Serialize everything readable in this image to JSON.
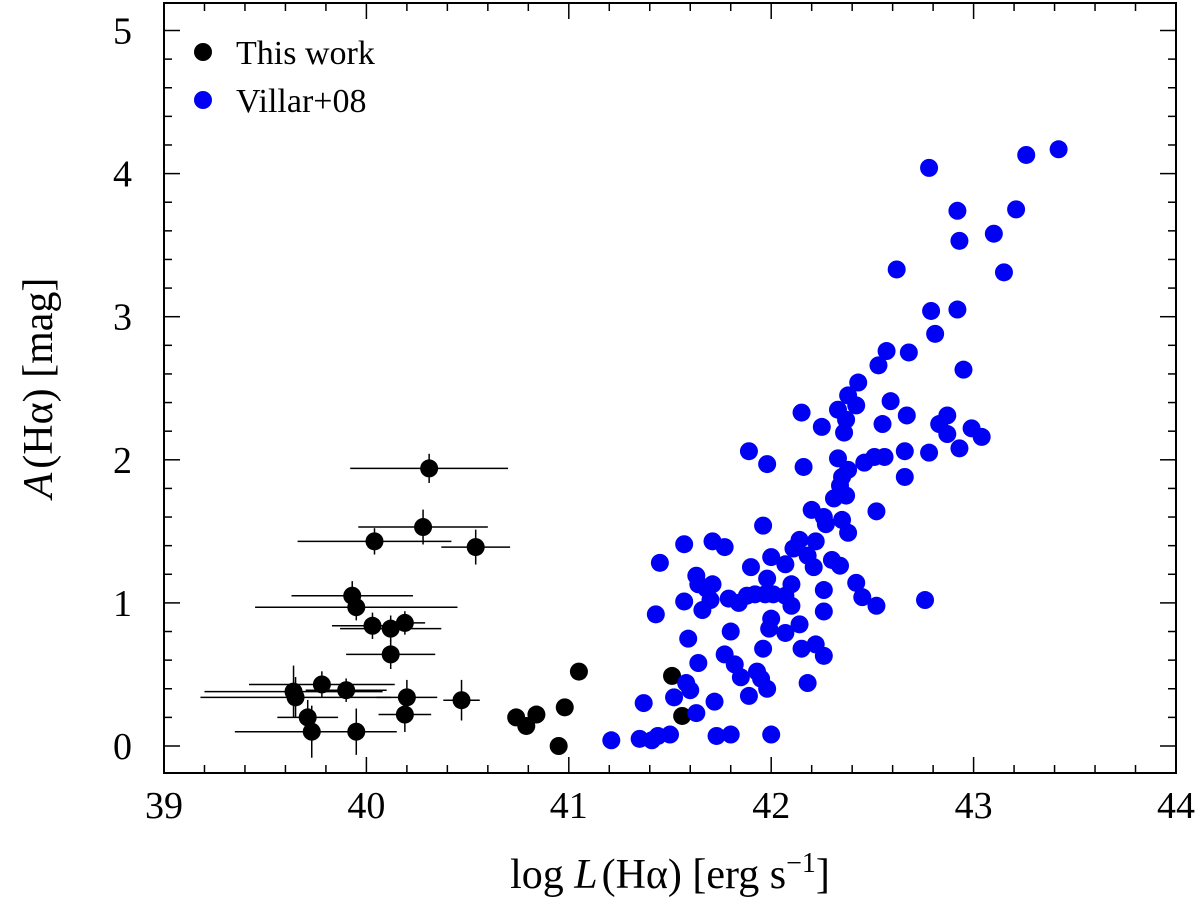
{
  "chart_data": {
    "type": "scatter",
    "title": "",
    "xlabel_prefix": "log ",
    "xlabel_var": "L",
    "xlabel_paren": "(Hα)",
    "xlabel_unit": " [erg s",
    "xlabel_exp": "−1",
    "xlabel_close": "]",
    "ylabel_var": "A",
    "ylabel_rest": "(Hα) [mag]",
    "xlim": [
      39,
      44
    ],
    "ylim": [
      -0.2,
      5.2
    ],
    "xticks": [
      39,
      40,
      41,
      42,
      43,
      44
    ],
    "yticks": [
      0,
      1,
      2,
      3,
      4,
      5
    ],
    "xtick_labels": [
      "39",
      "40",
      "41",
      "42",
      "43",
      "44"
    ],
    "ytick_labels": [
      "0",
      "1",
      "2",
      "3",
      "4",
      "5"
    ],
    "grid": false,
    "legend_position": "top-left",
    "series": [
      {
        "name": "This work",
        "color": "#000000",
        "points": [
          {
            "x": 40.31,
            "y": 1.94,
            "xerr": 0.39,
            "yerr": 0.06
          },
          {
            "x": 40.28,
            "y": 1.53,
            "xerr": 0.32,
            "yerr": 0.08
          },
          {
            "x": 40.04,
            "y": 1.43,
            "xerr": 0.38,
            "yerr": 0.05
          },
          {
            "x": 40.54,
            "y": 1.39,
            "xerr": 0.17,
            "yerr": 0.08
          },
          {
            "x": 39.93,
            "y": 1.05,
            "xerr": 0.3,
            "yerr": 0.06
          },
          {
            "x": 39.95,
            "y": 0.97,
            "xerr": 0.5,
            "yerr": 0.05
          },
          {
            "x": 40.03,
            "y": 0.84,
            "xerr": 0.2,
            "yerr": 0.05
          },
          {
            "x": 40.12,
            "y": 0.82,
            "xerr": 0.25,
            "yerr": 0.05
          },
          {
            "x": 40.19,
            "y": 0.86,
            "xerr": 0.1,
            "yerr": 0.04
          },
          {
            "x": 40.12,
            "y": 0.64,
            "xerr": 0.22,
            "yerr": 0.06
          },
          {
            "x": 39.78,
            "y": 0.43,
            "xerr": 0.36,
            "yerr": 0.05
          },
          {
            "x": 39.9,
            "y": 0.39,
            "xerr": 0.2,
            "yerr": 0.04
          },
          {
            "x": 39.64,
            "y": 0.38,
            "xerr": 0.44,
            "yerr": 0.14
          },
          {
            "x": 39.65,
            "y": 0.34,
            "xerr": 0.47,
            "yerr": 0.1
          },
          {
            "x": 40.2,
            "y": 0.34,
            "xerr": 0.15,
            "yerr": 0.08
          },
          {
            "x": 40.47,
            "y": 0.32,
            "xerr": 0.09,
            "yerr": 0.1
          },
          {
            "x": 40.19,
            "y": 0.22,
            "xerr": 0.13,
            "yerr": 0.08
          },
          {
            "x": 39.71,
            "y": 0.2,
            "xerr": 0.15,
            "yerr": 0.08
          },
          {
            "x": 39.73,
            "y": 0.1,
            "xerr": 0.38,
            "yerr": 0.14
          },
          {
            "x": 39.95,
            "y": 0.1,
            "xerr": 0.2,
            "yerr": 0.12
          },
          {
            "x": 40.74,
            "y": 0.2,
            "xerr": 0.0,
            "yerr": 0.0
          },
          {
            "x": 40.79,
            "y": 0.14,
            "xerr": 0.0,
            "yerr": 0.0
          },
          {
            "x": 40.84,
            "y": 0.22,
            "xerr": 0.0,
            "yerr": 0.0
          },
          {
            "x": 40.95,
            "y": 0.0,
            "xerr": 0.0,
            "yerr": 0.0
          },
          {
            "x": 40.98,
            "y": 0.27,
            "xerr": 0.0,
            "yerr": 0.0
          },
          {
            "x": 41.05,
            "y": 0.52,
            "xerr": 0.0,
            "yerr": 0.0
          },
          {
            "x": 41.51,
            "y": 0.49,
            "xerr": 0.0,
            "yerr": 0.0
          },
          {
            "x": 41.56,
            "y": 0.21,
            "xerr": 0.0,
            "yerr": 0.0
          }
        ]
      },
      {
        "name": "Villar+08",
        "color": "#0000f5",
        "points": [
          {
            "x": 43.42,
            "y": 4.17
          },
          {
            "x": 43.26,
            "y": 4.13
          },
          {
            "x": 42.78,
            "y": 4.04
          },
          {
            "x": 42.92,
            "y": 3.74
          },
          {
            "x": 43.21,
            "y": 3.75
          },
          {
            "x": 43.1,
            "y": 3.58
          },
          {
            "x": 42.93,
            "y": 3.53
          },
          {
            "x": 42.62,
            "y": 3.33
          },
          {
            "x": 43.15,
            "y": 3.31
          },
          {
            "x": 42.79,
            "y": 3.04
          },
          {
            "x": 42.92,
            "y": 3.05
          },
          {
            "x": 42.81,
            "y": 2.88
          },
          {
            "x": 42.57,
            "y": 2.76
          },
          {
            "x": 42.68,
            "y": 2.75
          },
          {
            "x": 42.53,
            "y": 2.66
          },
          {
            "x": 42.95,
            "y": 2.63
          },
          {
            "x": 42.43,
            "y": 2.54
          },
          {
            "x": 42.38,
            "y": 2.45
          },
          {
            "x": 42.59,
            "y": 2.41
          },
          {
            "x": 42.42,
            "y": 2.38
          },
          {
            "x": 42.33,
            "y": 2.35
          },
          {
            "x": 42.15,
            "y": 2.33
          },
          {
            "x": 42.87,
            "y": 2.31
          },
          {
            "x": 42.67,
            "y": 2.31
          },
          {
            "x": 42.37,
            "y": 2.28
          },
          {
            "x": 42.55,
            "y": 2.25
          },
          {
            "x": 42.83,
            "y": 2.25
          },
          {
            "x": 42.25,
            "y": 2.23
          },
          {
            "x": 42.99,
            "y": 2.22
          },
          {
            "x": 42.36,
            "y": 2.19
          },
          {
            "x": 42.87,
            "y": 2.18
          },
          {
            "x": 43.04,
            "y": 2.16
          },
          {
            "x": 41.89,
            "y": 2.06
          },
          {
            "x": 42.66,
            "y": 2.06
          },
          {
            "x": 42.78,
            "y": 2.05
          },
          {
            "x": 42.93,
            "y": 2.08
          },
          {
            "x": 42.51,
            "y": 2.02
          },
          {
            "x": 42.33,
            "y": 2.01
          },
          {
            "x": 42.56,
            "y": 2.02
          },
          {
            "x": 42.46,
            "y": 1.98
          },
          {
            "x": 41.98,
            "y": 1.97
          },
          {
            "x": 42.16,
            "y": 1.95
          },
          {
            "x": 42.38,
            "y": 1.93
          },
          {
            "x": 42.35,
            "y": 1.88
          },
          {
            "x": 42.66,
            "y": 1.88
          },
          {
            "x": 42.34,
            "y": 1.82
          },
          {
            "x": 42.37,
            "y": 1.75
          },
          {
            "x": 42.31,
            "y": 1.73
          },
          {
            "x": 42.2,
            "y": 1.65
          },
          {
            "x": 42.52,
            "y": 1.64
          },
          {
            "x": 42.26,
            "y": 1.6
          },
          {
            "x": 42.35,
            "y": 1.58
          },
          {
            "x": 42.27,
            "y": 1.55
          },
          {
            "x": 41.96,
            "y": 1.54
          },
          {
            "x": 42.38,
            "y": 1.49
          },
          {
            "x": 42.14,
            "y": 1.44
          },
          {
            "x": 42.22,
            "y": 1.43
          },
          {
            "x": 41.71,
            "y": 1.43
          },
          {
            "x": 41.57,
            "y": 1.41
          },
          {
            "x": 41.77,
            "y": 1.39
          },
          {
            "x": 42.11,
            "y": 1.38
          },
          {
            "x": 42.18,
            "y": 1.33
          },
          {
            "x": 42.0,
            "y": 1.32
          },
          {
            "x": 42.3,
            "y": 1.3
          },
          {
            "x": 41.45,
            "y": 1.28
          },
          {
            "x": 42.07,
            "y": 1.27
          },
          {
            "x": 42.34,
            "y": 1.26
          },
          {
            "x": 41.9,
            "y": 1.25
          },
          {
            "x": 42.21,
            "y": 1.25
          },
          {
            "x": 41.63,
            "y": 1.19
          },
          {
            "x": 41.98,
            "y": 1.17
          },
          {
            "x": 41.64,
            "y": 1.13
          },
          {
            "x": 41.71,
            "y": 1.13
          },
          {
            "x": 42.1,
            "y": 1.13
          },
          {
            "x": 42.42,
            "y": 1.14
          },
          {
            "x": 41.68,
            "y": 1.1
          },
          {
            "x": 42.26,
            "y": 1.09
          },
          {
            "x": 41.92,
            "y": 1.06
          },
          {
            "x": 42.01,
            "y": 1.06
          },
          {
            "x": 41.57,
            "y": 1.01
          },
          {
            "x": 41.84,
            "y": 1.0
          },
          {
            "x": 41.88,
            "y": 1.05
          },
          {
            "x": 42.07,
            "y": 1.05
          },
          {
            "x": 41.97,
            "y": 1.06
          },
          {
            "x": 42.45,
            "y": 1.04
          },
          {
            "x": 41.7,
            "y": 1.02
          },
          {
            "x": 41.79,
            "y": 1.03
          },
          {
            "x": 42.76,
            "y": 1.02
          },
          {
            "x": 42.1,
            "y": 0.98
          },
          {
            "x": 42.52,
            "y": 0.98
          },
          {
            "x": 41.66,
            "y": 0.95
          },
          {
            "x": 42.26,
            "y": 0.94
          },
          {
            "x": 41.43,
            "y": 0.92
          },
          {
            "x": 42.0,
            "y": 0.89
          },
          {
            "x": 42.14,
            "y": 0.85
          },
          {
            "x": 41.99,
            "y": 0.82
          },
          {
            "x": 41.8,
            "y": 0.8
          },
          {
            "x": 42.07,
            "y": 0.79
          },
          {
            "x": 41.59,
            "y": 0.75
          },
          {
            "x": 42.22,
            "y": 0.71
          },
          {
            "x": 41.96,
            "y": 0.68
          },
          {
            "x": 42.15,
            "y": 0.68
          },
          {
            "x": 41.77,
            "y": 0.64
          },
          {
            "x": 42.26,
            "y": 0.63
          },
          {
            "x": 41.64,
            "y": 0.58
          },
          {
            "x": 41.82,
            "y": 0.57
          },
          {
            "x": 41.93,
            "y": 0.52
          },
          {
            "x": 41.85,
            "y": 0.48
          },
          {
            "x": 41.95,
            "y": 0.47
          },
          {
            "x": 42.18,
            "y": 0.44
          },
          {
            "x": 41.58,
            "y": 0.44
          },
          {
            "x": 41.98,
            "y": 0.4
          },
          {
            "x": 41.6,
            "y": 0.39
          },
          {
            "x": 41.89,
            "y": 0.35
          },
          {
            "x": 41.52,
            "y": 0.34
          },
          {
            "x": 41.37,
            "y": 0.3
          },
          {
            "x": 41.72,
            "y": 0.31
          },
          {
            "x": 41.63,
            "y": 0.23
          },
          {
            "x": 41.21,
            "y": 0.04
          },
          {
            "x": 41.35,
            "y": 0.05
          },
          {
            "x": 41.41,
            "y": 0.04
          },
          {
            "x": 41.44,
            "y": 0.07
          },
          {
            "x": 41.5,
            "y": 0.08
          },
          {
            "x": 41.73,
            "y": 0.07
          },
          {
            "x": 41.8,
            "y": 0.08
          },
          {
            "x": 42.0,
            "y": 0.08
          }
        ]
      }
    ]
  }
}
